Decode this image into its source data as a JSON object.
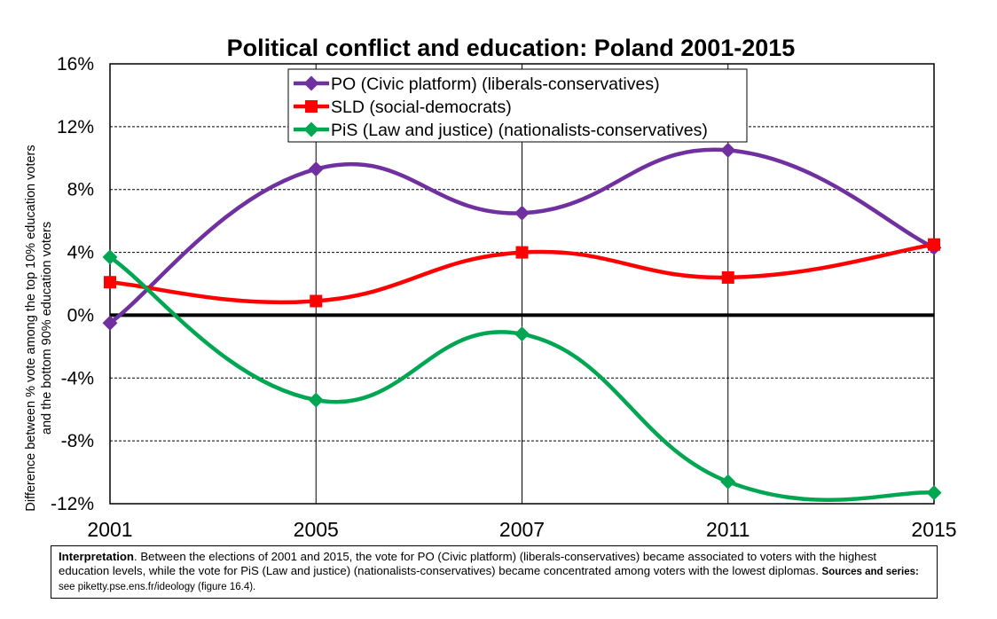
{
  "chart_data": {
    "type": "line",
    "title": "Political conflict and education: Poland 2001-2015",
    "ylabel_line1": "Difference between % vote among the top 10% education voters",
    "ylabel_line2": "and the bottom 90% education voters",
    "xlabel": "",
    "categories": [
      "2001",
      "2005",
      "2007",
      "2011",
      "2015"
    ],
    "ylim": [
      -12,
      16
    ],
    "yticks": [
      -12,
      -8,
      -4,
      0,
      4,
      8,
      12,
      16
    ],
    "ytick_labels": [
      "-12%",
      "-8%",
      "-4%",
      "0%",
      "4%",
      "8%",
      "12%",
      "16%"
    ],
    "grid": true,
    "legend_position": "top-center",
    "series": [
      {
        "name": "PO (Civic platform) (liberals-conservatives)",
        "color": "#7030A0",
        "marker": "diamond",
        "values": [
          -0.5,
          9.3,
          6.5,
          10.5,
          4.3
        ]
      },
      {
        "name": "SLD (social-democrats)",
        "color": "#FF0000",
        "marker": "square",
        "values": [
          2.1,
          0.9,
          4.0,
          2.4,
          4.5
        ]
      },
      {
        "name": "PiS (Law and justice) (nationalists-conservatives)",
        "color": "#00A651",
        "marker": "diamond",
        "values": [
          3.7,
          -5.4,
          -1.2,
          -10.6,
          -11.3
        ]
      }
    ]
  },
  "note": {
    "interp_label": "Interpretation",
    "interp_text": ". Between the elections of 2001 and 2015, the vote for PO (Civic platform) (liberals-conservatives) became associated to voters with the highest education levels, while the vote for PiS (Law and justice) (nationalists-conservatives) became concentrated among voters with the lowest diplomas. ",
    "sources_label": "Sources and series:",
    "sources_text": " see piketty.pse.ens.fr/ideology (figure 16.4)."
  }
}
